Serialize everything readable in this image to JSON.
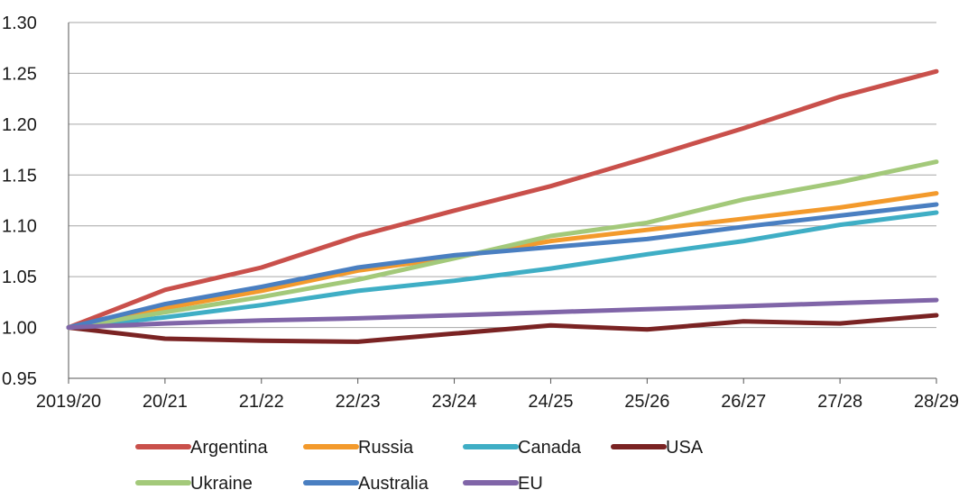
{
  "chart_data": {
    "type": "line",
    "title": "",
    "xlabel": "",
    "ylabel": "",
    "categories": [
      "2019/20",
      "20/21",
      "21/22",
      "22/23",
      "23/24",
      "24/25",
      "25/26",
      "26/27",
      "27/28",
      "28/29"
    ],
    "ylim": [
      0.95,
      1.3
    ],
    "yticks": [
      "0.95",
      "1.00",
      "1.05",
      "1.10",
      "1.15",
      "1.20",
      "1.25",
      "1.30"
    ],
    "ytick_values": [
      0.95,
      1.0,
      1.05,
      1.1,
      1.15,
      1.2,
      1.25,
      1.3
    ],
    "grid": true,
    "legend_position": "bottom",
    "series": [
      {
        "name": "Argentina",
        "color": "#c9504b",
        "values": [
          1.0,
          1.037,
          1.059,
          1.09,
          1.115,
          1.139,
          1.167,
          1.196,
          1.227,
          1.252
        ]
      },
      {
        "name": "Russia",
        "color": "#f39a2c",
        "values": [
          1.0,
          1.019,
          1.036,
          1.056,
          1.069,
          1.085,
          1.096,
          1.107,
          1.118,
          1.132
        ]
      },
      {
        "name": "Canada",
        "color": "#3faec5",
        "values": [
          1.0,
          1.01,
          1.022,
          1.036,
          1.046,
          1.058,
          1.072,
          1.085,
          1.101,
          1.113
        ]
      },
      {
        "name": "USA",
        "color": "#7a2323",
        "values": [
          1.0,
          0.989,
          0.987,
          0.986,
          0.994,
          1.002,
          0.998,
          1.006,
          1.004,
          1.012
        ]
      },
      {
        "name": "Ukraine",
        "color": "#a3c97a",
        "values": [
          1.0,
          1.015,
          1.03,
          1.047,
          1.068,
          1.09,
          1.103,
          1.126,
          1.143,
          1.163
        ]
      },
      {
        "name": "Australia",
        "color": "#4a7fc1",
        "values": [
          1.0,
          1.023,
          1.04,
          1.059,
          1.071,
          1.079,
          1.087,
          1.099,
          1.11,
          1.121
        ]
      },
      {
        "name": "EU",
        "color": "#8065a8",
        "values": [
          1.0,
          1.004,
          1.007,
          1.009,
          1.012,
          1.015,
          1.018,
          1.021,
          1.024,
          1.027
        ]
      }
    ]
  }
}
